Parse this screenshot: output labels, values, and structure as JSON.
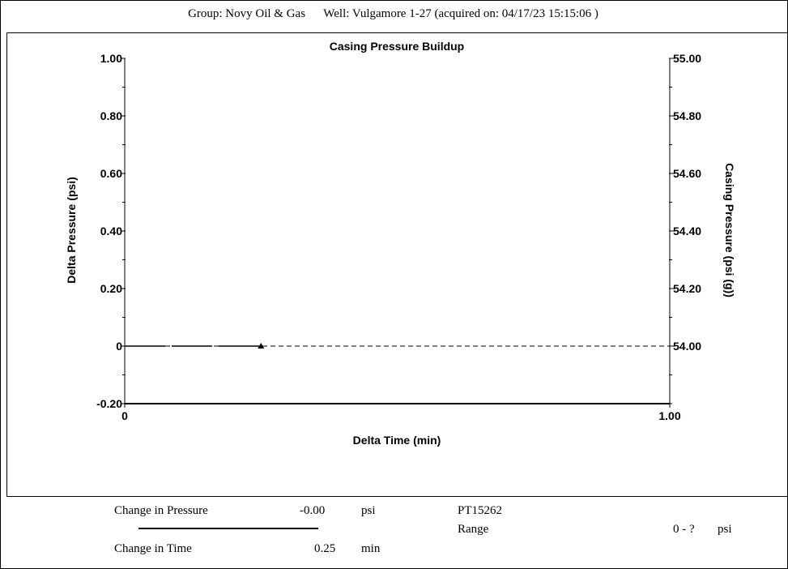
{
  "header": {
    "group": "Group: Novy Oil & Gas",
    "well": "Well: Vulgamore 1-27 (acquired on: 04/17/23 15:15:06 )"
  },
  "chart_data": {
    "type": "line",
    "title": "Casing Pressure Buildup",
    "xlabel": "Delta Time (min)",
    "ylabel": "Delta Pressure (psi)",
    "y2label": "Casing Pressure (psi (g))",
    "xlim": [
      0,
      1.0
    ],
    "ylim": [
      -0.2,
      1.0
    ],
    "y2lim": [
      53.8,
      55.0
    ],
    "x_ticks": [
      "0",
      "1.00"
    ],
    "y_ticks": [
      {
        "value": 1.0,
        "label": "1.00"
      },
      {
        "value": 0.8,
        "label": "0.80"
      },
      {
        "value": 0.6,
        "label": "0.60"
      },
      {
        "value": 0.4,
        "label": "0.40"
      },
      {
        "value": 0.2,
        "label": "0.20"
      },
      {
        "value": 0.0,
        "label": "0"
      },
      {
        "value": -0.2,
        "label": "-0.20"
      }
    ],
    "y2_ticks": [
      {
        "value": 55.0,
        "label": "55.00"
      },
      {
        "value": 54.8,
        "label": "54.80"
      },
      {
        "value": 54.6,
        "label": "54.60"
      },
      {
        "value": 54.4,
        "label": "54.40"
      },
      {
        "value": 54.2,
        "label": "54.20"
      },
      {
        "value": 54.0,
        "label": "54.00"
      }
    ],
    "series": [
      {
        "x": [
          0,
          0.25
        ],
        "y": [
          0,
          0
        ],
        "style": "solid-dash",
        "color": "#000000"
      },
      {
        "x": [
          0,
          1.0
        ],
        "y": [
          0,
          0
        ],
        "style": "dashed",
        "color": "#000000"
      }
    ],
    "marker": {
      "x": 0.25,
      "y": 0,
      "shape": "triangle"
    },
    "grid": false
  },
  "footer": {
    "change_pressure_label": "Change in Pressure",
    "change_pressure_value": "-0.00",
    "change_pressure_unit": "psi",
    "change_time_label": "Change in Time",
    "change_time_value": "0.25",
    "change_time_unit": "min",
    "sensor_id": "PT15262",
    "range_label": "Range",
    "range_value": "0 - ?",
    "range_unit": "psi"
  }
}
